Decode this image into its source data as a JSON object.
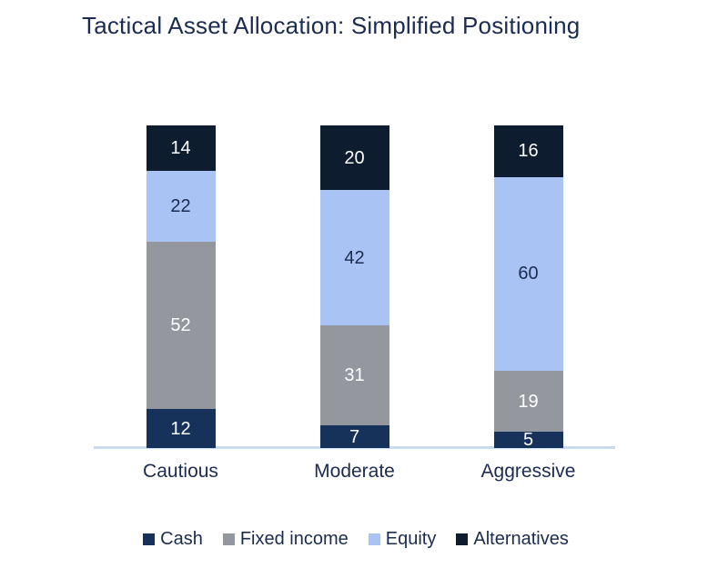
{
  "chart_data": {
    "type": "bar",
    "stacked": true,
    "title": "Tactical Asset Allocation: Simplified Positioning",
    "categories": [
      "Cautious",
      "Moderate",
      "Aggressive"
    ],
    "series": [
      {
        "name": "Cash",
        "color": "#16325B",
        "label_color": "#FFFFFF",
        "values": [
          12,
          7,
          5
        ]
      },
      {
        "name": "Fixed income",
        "color": "#95979F",
        "label_color": "#FFFFFF",
        "values": [
          52,
          31,
          19
        ]
      },
      {
        "name": "Equity",
        "color": "#AAC3F5",
        "label_color": "#1C2C50",
        "values": [
          22,
          42,
          60
        ]
      },
      {
        "name": "Alternatives",
        "color": "#0E1C30",
        "label_color": "#FFFFFF",
        "values": [
          14,
          20,
          16
        ]
      }
    ],
    "stack_totals": [
      100,
      100,
      100
    ],
    "ylim": [
      0,
      100
    ],
    "grid": false,
    "data_labels": true,
    "legend_position": "bottom",
    "colors": {
      "text": "#1C2C50",
      "axis_line": "#C9DCEE",
      "background": "#FFFFFF"
    }
  }
}
